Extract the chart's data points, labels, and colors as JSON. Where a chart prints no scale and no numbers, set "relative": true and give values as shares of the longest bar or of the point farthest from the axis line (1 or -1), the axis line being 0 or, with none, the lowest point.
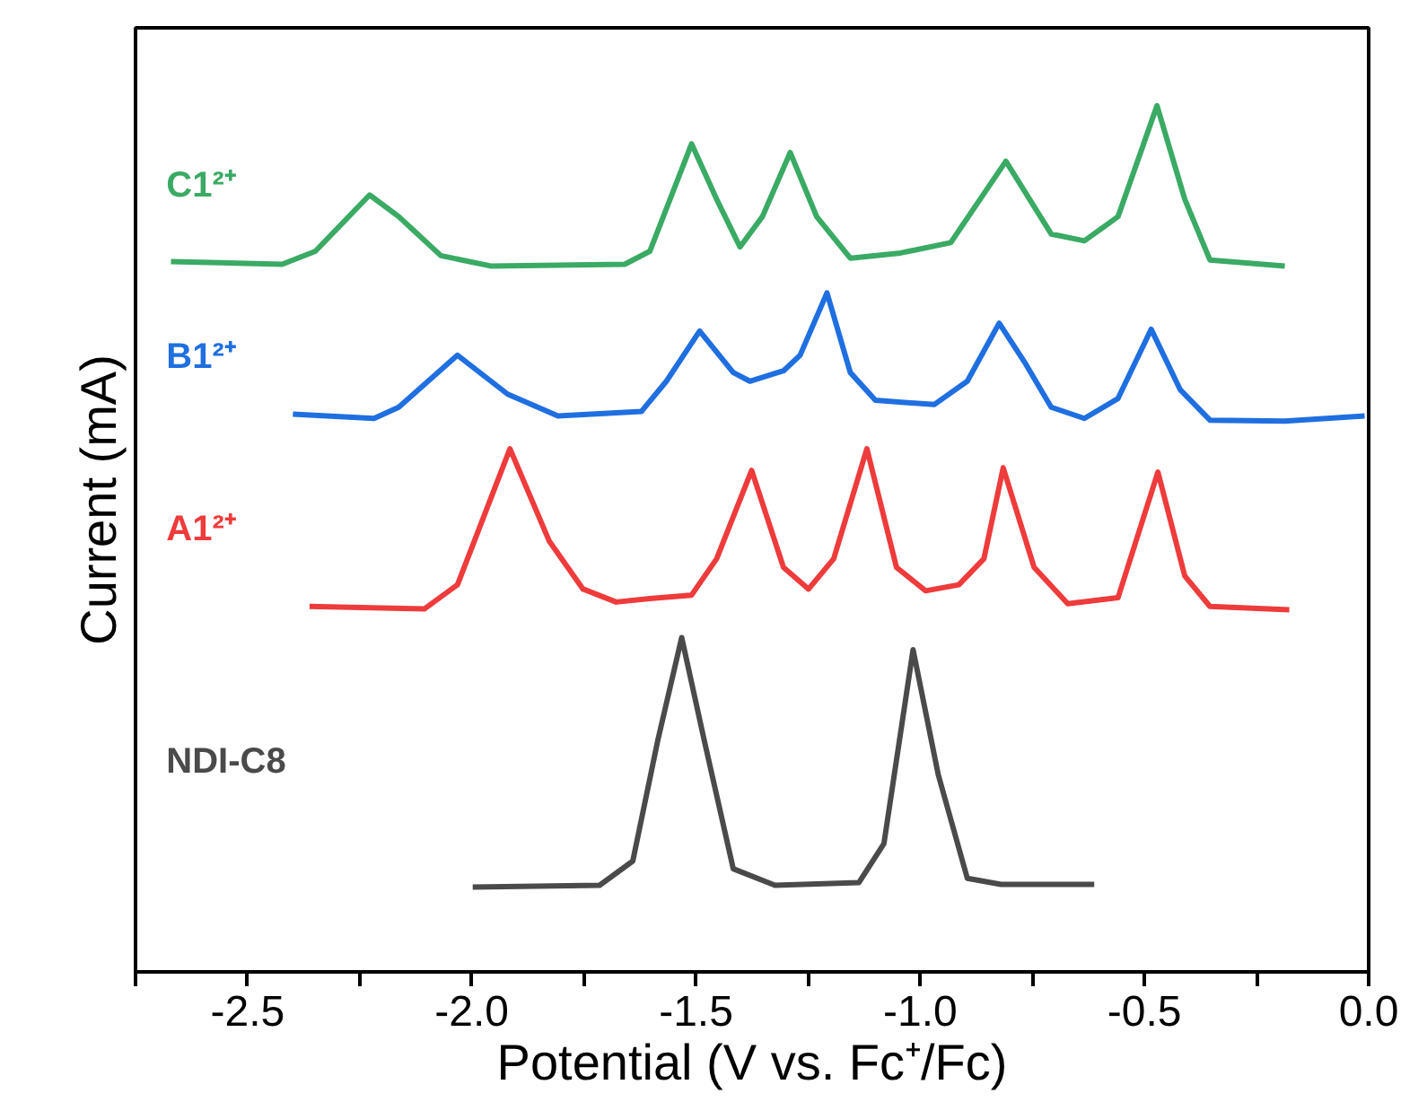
{
  "chart_data": {
    "type": "line",
    "relative": true,
    "xlabel": "Potential (V vs. Fc⁺/Fc)",
    "ylabel": "Current (mA)",
    "xlim": [
      -2.75,
      0.0
    ],
    "xticks": [
      {
        "value": -2.75,
        "label": null
      },
      {
        "value": -2.5,
        "label": "-2.5"
      },
      {
        "value": -2.25,
        "label": null
      },
      {
        "value": -2.0,
        "label": "-2.0"
      },
      {
        "value": -1.75,
        "label": null
      },
      {
        "value": -1.5,
        "label": "-1.5"
      },
      {
        "value": -1.25,
        "label": null
      },
      {
        "value": -1.0,
        "label": "-1.0"
      },
      {
        "value": -0.75,
        "label": null
      },
      {
        "value": -0.5,
        "label": "-0.5"
      },
      {
        "value": -0.25,
        "label": null
      },
      {
        "value": 0.0,
        "label": "0.0"
      }
    ],
    "tick_labels": "x",
    "grid": false,
    "marker": "none",
    "line_style": "solid",
    "series": [
      {
        "name": "C1²⁺",
        "color": "#3aaa64",
        "x": [
          -2.671,
          -2.423,
          -2.349,
          -2.228,
          -2.163,
          -2.069,
          -1.958,
          -1.659,
          -1.603,
          -1.51,
          -1.454,
          -1.402,
          -1.352,
          -1.29,
          -1.231,
          -1.156,
          -1.044,
          -0.932,
          -0.809,
          -0.708,
          -0.634,
          -0.559,
          -0.472,
          -0.41,
          -0.354,
          -0.187
        ],
        "values": [
          0.82,
          0.817,
          0.832,
          0.897,
          0.872,
          0.827,
          0.815,
          0.817,
          0.832,
          0.956,
          0.892,
          0.837,
          0.872,
          0.946,
          0.872,
          0.824,
          0.83,
          0.842,
          0.936,
          0.852,
          0.844,
          0.872,
          1.0,
          0.892,
          0.822,
          0.815
        ]
      },
      {
        "name": "B1²⁺",
        "color": "#1f6fe0",
        "x": [
          -2.399,
          -2.218,
          -2.163,
          -2.032,
          -1.92,
          -1.808,
          -1.622,
          -1.566,
          -1.492,
          -1.417,
          -1.38,
          -1.305,
          -1.268,
          -1.208,
          -1.156,
          -1.1,
          -0.969,
          -0.895,
          -0.824,
          -0.765,
          -0.708,
          -0.634,
          -0.559,
          -0.485,
          -0.42,
          -0.354,
          -0.187,
          -0.009
        ],
        "values": [
          0.644,
          0.639,
          0.652,
          0.712,
          0.667,
          0.642,
          0.647,
          0.682,
          0.74,
          0.692,
          0.682,
          0.694,
          0.712,
          0.784,
          0.692,
          0.66,
          0.655,
          0.682,
          0.749,
          0.702,
          0.652,
          0.639,
          0.662,
          0.742,
          0.672,
          0.637,
          0.636,
          0.642
        ]
      },
      {
        "name": "A1²⁺",
        "color": "#ee3b3b",
        "x": [
          -2.362,
          -2.106,
          -2.032,
          -1.915,
          -1.827,
          -1.752,
          -1.678,
          -1.603,
          -1.51,
          -1.454,
          -1.376,
          -1.305,
          -1.249,
          -1.193,
          -1.119,
          -1.053,
          -0.988,
          -0.914,
          -0.858,
          -0.815,
          -0.746,
          -0.671,
          -0.559,
          -0.47,
          -0.41,
          -0.354,
          -0.177
        ],
        "values": [
          0.422,
          0.419,
          0.447,
          0.604,
          0.497,
          0.442,
          0.427,
          0.431,
          0.435,
          0.477,
          0.579,
          0.467,
          0.442,
          0.477,
          0.604,
          0.467,
          0.44,
          0.447,
          0.477,
          0.582,
          0.467,
          0.425,
          0.432,
          0.577,
          0.457,
          0.422,
          0.418
        ]
      },
      {
        "name": "NDI-C8",
        "color": "#4a4a4a",
        "x": [
          -1.998,
          -1.715,
          -1.641,
          -1.585,
          -1.532,
          -1.482,
          -1.417,
          -1.324,
          -1.137,
          -1.081,
          -1.016,
          -0.96,
          -0.895,
          -0.82,
          -0.612
        ],
        "values": [
          0.098,
          0.1,
          0.128,
          0.268,
          0.386,
          0.268,
          0.119,
          0.1,
          0.103,
          0.148,
          0.372,
          0.228,
          0.108,
          0.101,
          0.101
        ]
      }
    ]
  }
}
